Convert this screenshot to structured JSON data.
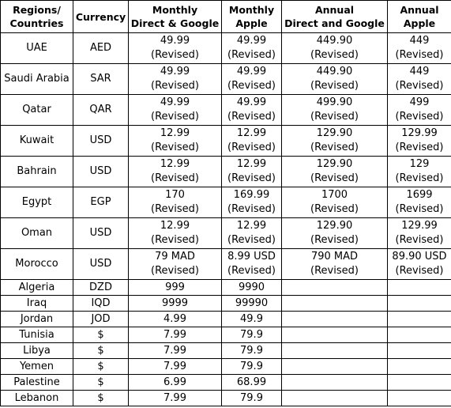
{
  "columns": [
    [
      "Regions/",
      "Countries"
    ],
    [
      "Currency"
    ],
    [
      "Monthly",
      "Direct & Google"
    ],
    [
      "Monthly",
      "Apple"
    ],
    [
      "Annual",
      "Direct and Google"
    ],
    [
      "Annual",
      "Apple"
    ]
  ],
  "rows": [
    {
      "country": "UAE",
      "currency": "AED",
      "monthly_direct_google": {
        "value": "49.99",
        "note": "(Revised)"
      },
      "monthly_apple": {
        "value": "49.99",
        "note": "(Revised)"
      },
      "annual_direct_google": {
        "value": "449.90",
        "note": "(Revised)"
      },
      "annual_apple": {
        "value": "449",
        "note": "(Revised)"
      }
    },
    {
      "country": "Saudi Arabia",
      "currency": "SAR",
      "monthly_direct_google": {
        "value": "49.99",
        "note": "(Revised)"
      },
      "monthly_apple": {
        "value": "49.99",
        "note": "(Revised)"
      },
      "annual_direct_google": {
        "value": "449.90",
        "note": "(Revised)"
      },
      "annual_apple": {
        "value": "449",
        "note": "(Revised)"
      }
    },
    {
      "country": "Qatar",
      "currency": "QAR",
      "monthly_direct_google": {
        "value": "49.99",
        "note": "(Revised)"
      },
      "monthly_apple": {
        "value": "49.99",
        "note": "(Revised)"
      },
      "annual_direct_google": {
        "value": "499.90",
        "note": "(Revised)"
      },
      "annual_apple": {
        "value": "499",
        "note": "(Revised)"
      }
    },
    {
      "country": "Kuwait",
      "currency": "USD",
      "monthly_direct_google": {
        "value": "12.99",
        "note": "(Revised)"
      },
      "monthly_apple": {
        "value": "12.99",
        "note": "(Revised)"
      },
      "annual_direct_google": {
        "value": "129.90",
        "note": "(Revised)"
      },
      "annual_apple": {
        "value": "129.99",
        "note": "(Revised)"
      }
    },
    {
      "country": "Bahrain",
      "currency": "USD",
      "monthly_direct_google": {
        "value": "12.99",
        "note": "(Revised)"
      },
      "monthly_apple": {
        "value": "12.99",
        "note": "(Revised)"
      },
      "annual_direct_google": {
        "value": "129.90",
        "note": "(Revised)"
      },
      "annual_apple": {
        "value": "129",
        "note": "(Revised)"
      }
    },
    {
      "country": "Egypt",
      "currency": "EGP",
      "monthly_direct_google": {
        "value": "170",
        "note": "(Revised)"
      },
      "monthly_apple": {
        "value": "169.99",
        "note": "(Revised)"
      },
      "annual_direct_google": {
        "value": "1700",
        "note": "(Revised)"
      },
      "annual_apple": {
        "value": "1699",
        "note": "(Revised)"
      }
    },
    {
      "country": "Oman",
      "currency": "USD",
      "monthly_direct_google": {
        "value": "12.99",
        "note": "(Revised)"
      },
      "monthly_apple": {
        "value": "12.99",
        "note": "(Revised)"
      },
      "annual_direct_google": {
        "value": "129.90",
        "note": "(Revised)"
      },
      "annual_apple": {
        "value": "129.99",
        "note": "(Revised)"
      }
    },
    {
      "country": "Morocco",
      "currency": "USD",
      "monthly_direct_google": {
        "value": "79 MAD",
        "note": "(Revised)"
      },
      "monthly_apple": {
        "value": "8.99 USD",
        "note": "(Revised)"
      },
      "annual_direct_google": {
        "value": "790 MAD",
        "note": "(Revised)"
      },
      "annual_apple": {
        "value": "89.90 USD",
        "note": "(Revised)"
      }
    },
    {
      "country": "Algeria",
      "currency": "DZD",
      "monthly_direct_google": {
        "value": "999",
        "note": ""
      },
      "monthly_apple": {
        "value": "9990",
        "note": ""
      },
      "annual_direct_google": {
        "value": "",
        "note": ""
      },
      "annual_apple": {
        "value": "",
        "note": ""
      }
    },
    {
      "country": "Iraq",
      "currency": "IQD",
      "monthly_direct_google": {
        "value": "9999",
        "note": ""
      },
      "monthly_apple": {
        "value": "99990",
        "note": ""
      },
      "annual_direct_google": {
        "value": "",
        "note": ""
      },
      "annual_apple": {
        "value": "",
        "note": ""
      }
    },
    {
      "country": "Jordan",
      "currency": "JOD",
      "monthly_direct_google": {
        "value": "4.99",
        "note": ""
      },
      "monthly_apple": {
        "value": "49.9",
        "note": ""
      },
      "annual_direct_google": {
        "value": "",
        "note": ""
      },
      "annual_apple": {
        "value": "",
        "note": ""
      }
    },
    {
      "country": "Tunisia",
      "currency": "$",
      "monthly_direct_google": {
        "value": "7.99",
        "note": ""
      },
      "monthly_apple": {
        "value": "79.9",
        "note": ""
      },
      "annual_direct_google": {
        "value": "",
        "note": ""
      },
      "annual_apple": {
        "value": "",
        "note": ""
      }
    },
    {
      "country": "Libya",
      "currency": "$",
      "monthly_direct_google": {
        "value": "7.99",
        "note": ""
      },
      "monthly_apple": {
        "value": "79.9",
        "note": ""
      },
      "annual_direct_google": {
        "value": "",
        "note": ""
      },
      "annual_apple": {
        "value": "",
        "note": ""
      }
    },
    {
      "country": "Yemen",
      "currency": "$",
      "monthly_direct_google": {
        "value": "7.99",
        "note": ""
      },
      "monthly_apple": {
        "value": "79.9",
        "note": ""
      },
      "annual_direct_google": {
        "value": "",
        "note": ""
      },
      "annual_apple": {
        "value": "",
        "note": ""
      }
    },
    {
      "country": "Palestine",
      "currency": "$",
      "monthly_direct_google": {
        "value": "6.99",
        "note": ""
      },
      "monthly_apple": {
        "value": "68.99",
        "note": ""
      },
      "annual_direct_google": {
        "value": "",
        "note": ""
      },
      "annual_apple": {
        "value": "",
        "note": ""
      }
    },
    {
      "country": "Lebanon",
      "currency": "$",
      "monthly_direct_google": {
        "value": "7.99",
        "note": ""
      },
      "monthly_apple": {
        "value": "79.9",
        "note": ""
      },
      "annual_direct_google": {
        "value": "",
        "note": ""
      },
      "annual_apple": {
        "value": "",
        "note": ""
      }
    }
  ]
}
